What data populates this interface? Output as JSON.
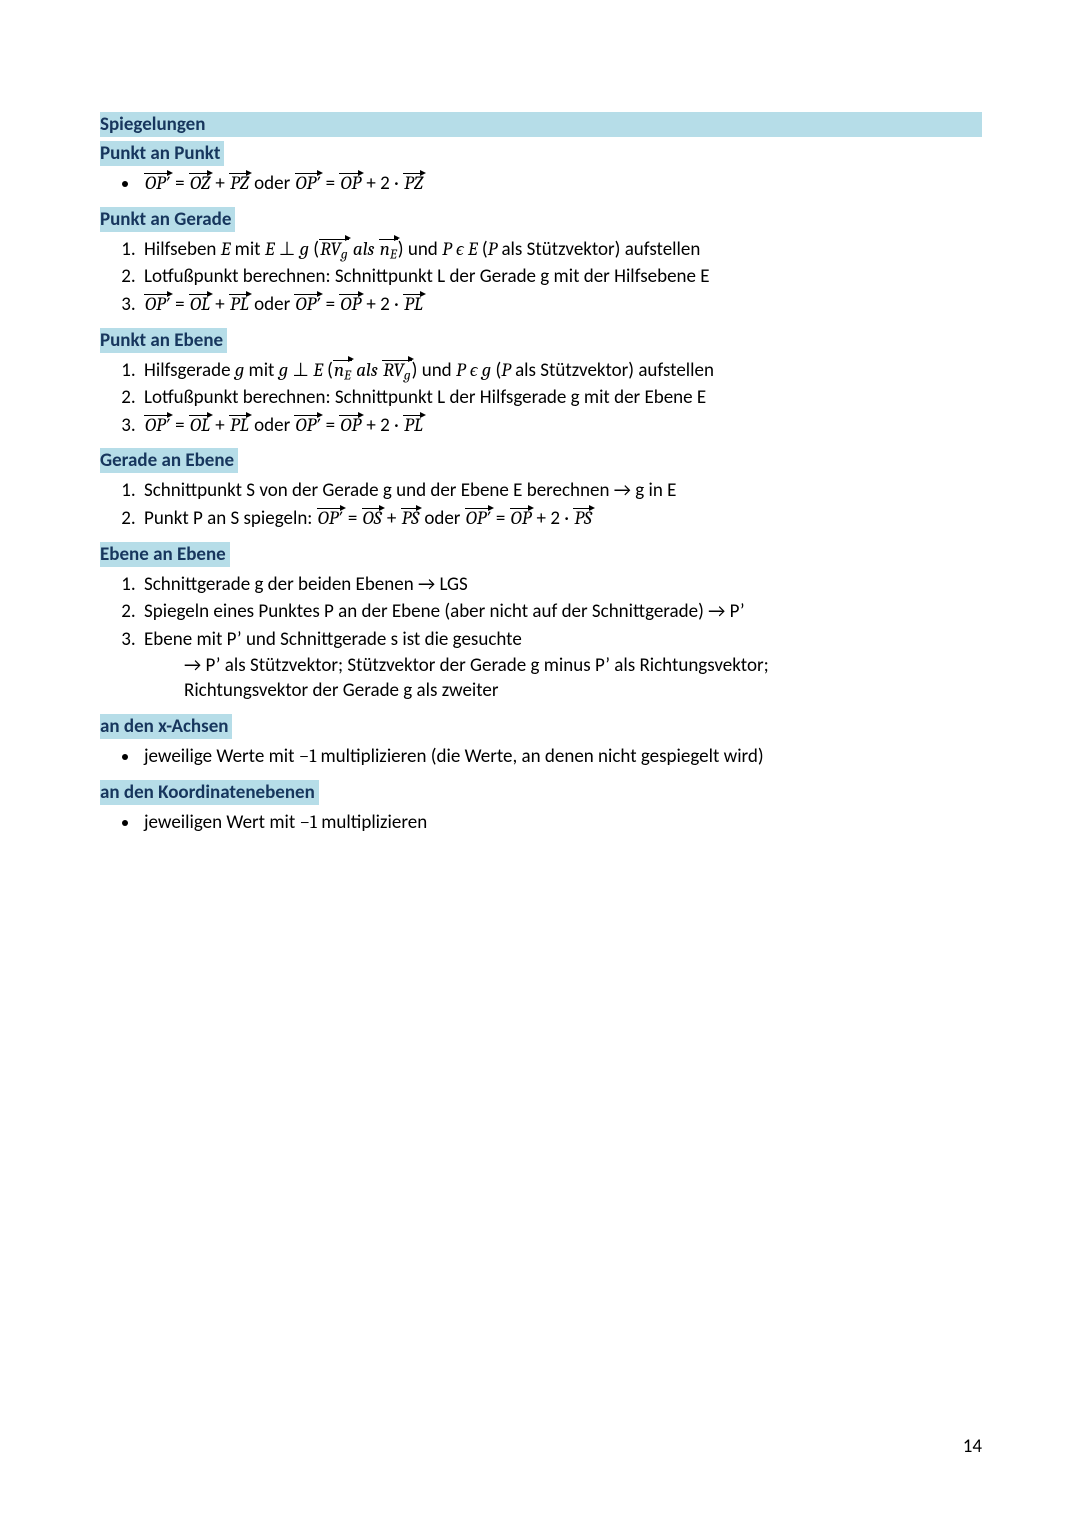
{
  "colors": {
    "highlight_bg": "#b6dde8",
    "heading_text": "#17365d",
    "body_text": "#000000",
    "page_bg": "#ffffff"
  },
  "typography": {
    "body_font": "Calibri",
    "math_font": "Cambria Math",
    "body_size_pt": 11,
    "heading_weight": 700
  },
  "page_number": "14",
  "title": "Spiegelungen",
  "sections": [
    {
      "heading": "Punkt an Punkt",
      "items": [
        {
          "html": "<span class=\"vec\"><span class=\"mi\">OP′</span></span> = <span class=\"vec\"><span class=\"mi\">OZ</span></span> + <span class=\"vec\"><span class=\"mi\">PZ</span></span> oder <span class=\"vec\"><span class=\"mi\">OP′</span></span> = <span class=\"vec\"><span class=\"mi\">OP</span></span> + 2 · <span class=\"vec\"><span class=\"mi\">PZ</span></span>"
        }
      ],
      "list_type": "bullet"
    },
    {
      "heading": "Punkt an Gerade",
      "items": [
        {
          "html": "Hilfseben <span class=\"mi\">E</span> mit <span class=\"mi\">E</span> ⊥ <span class=\"mi\">g</span> (<span class=\"vec\"><span class=\"mi\">RV</span><sub class=\"ms\">g</sub></span> <span class=\"mi\">als</span> <span class=\"vec\"><span class=\"mi\">n</span><sub class=\"ms\">E</sub></span>) und <span class=\"mi\">P</span> <span class=\"mi\">ϵ</span> <span class=\"mi\">E</span> (<span class=\"mi\">P</span> als Stützvektor) aufstellen"
        },
        {
          "html": "Lotfußpunkt berechnen: Schnittpunkt L der Gerade g mit der Hilfsebene E"
        },
        {
          "html": "<span class=\"vec\"><span class=\"mi\">OP′</span></span> = <span class=\"vec\"><span class=\"mi\">OL</span></span> + <span class=\"vec\"><span class=\"mi\">PL</span></span> oder <span class=\"vec\"><span class=\"mi\">OP′</span></span> = <span class=\"vec\"><span class=\"mi\">OP</span></span> + 2 · <span class=\"vec\"><span class=\"mi\">PL</span></span>"
        }
      ],
      "list_type": "number"
    },
    {
      "heading": "Punkt an Ebene",
      "items": [
        {
          "html": "Hilfsgerade <span class=\"mi\">g</span> mit <span class=\"mi\">g</span> ⊥ <span class=\"mi\">E</span> (<span class=\"vec\"><span class=\"mi\">n</span><sub class=\"ms\">E</sub></span> <span class=\"mi\">als</span> <span class=\"vec\"><span class=\"mi\">RV</span><sub class=\"ms\">g</sub></span>) und <span class=\"mi\">P</span> <span class=\"mi\">ϵ</span> <span class=\"mi\">g</span> (<span class=\"mi\">P</span> als Stützvektor) aufstellen"
        },
        {
          "html": "Lotfußpunkt berechnen: Schnittpunkt L der Hilfsgerade g mit der Ebene E"
        },
        {
          "html": "<span class=\"vec\"><span class=\"mi\">OP′</span></span> = <span class=\"vec\"><span class=\"mi\">OL</span></span> + <span class=\"vec\"><span class=\"mi\">PL</span></span> oder <span class=\"vec\"><span class=\"mi\">OP′</span></span> = <span class=\"vec\"><span class=\"mi\">OP</span></span> + 2 · <span class=\"vec\"><span class=\"mi\">PL</span></span>"
        }
      ],
      "list_type": "number"
    },
    {
      "heading": "Gerade an Ebene",
      "items": [
        {
          "html": "Schnittpunkt S von der Gerade g und der Ebene E berechnen → g in E"
        },
        {
          "html": "Punkt P an S spiegeln: <span class=\"vec\"><span class=\"mi\">OP′</span></span> = <span class=\"vec\"><span class=\"mi\">OS</span></span> + <span class=\"vec\"><span class=\"mi\">PS</span></span> oder <span class=\"vec\"><span class=\"mi\">OP′</span></span> = <span class=\"vec\"><span class=\"mi\">OP</span></span> + 2 · <span class=\"vec\"><span class=\"mi\">PS</span></span>"
        }
      ],
      "list_type": "number"
    },
    {
      "heading": "Ebene an Ebene",
      "items": [
        {
          "html": "Schnittgerade g der beiden Ebenen → LGS"
        },
        {
          "html": "Spiegeln eines Punktes P an der Ebene (aber nicht auf der Schnittgerade) → P’"
        },
        {
          "html": "Ebene mit P’ und Schnittgerade s ist die gesuchte",
          "cont": [
            "→ P’ als Stützvektor; Stützvektor der Gerade g minus P’ als Richtungsvektor;",
            "Richtungsvektor der Gerade g als zweiter"
          ]
        }
      ],
      "list_type": "number"
    },
    {
      "heading": "an den x-Achsen",
      "items": [
        {
          "html": "jeweilige Werte mit <span class=\"mn\">−1</span> multiplizieren (die Werte, an denen nicht gespiegelt wird)"
        }
      ],
      "list_type": "bullet"
    },
    {
      "heading": "an den Koordinatenebenen",
      "items": [
        {
          "html": "jeweiligen Wert mit <span class=\"mn\">−1</span> multiplizieren"
        }
      ],
      "list_type": "bullet"
    }
  ]
}
